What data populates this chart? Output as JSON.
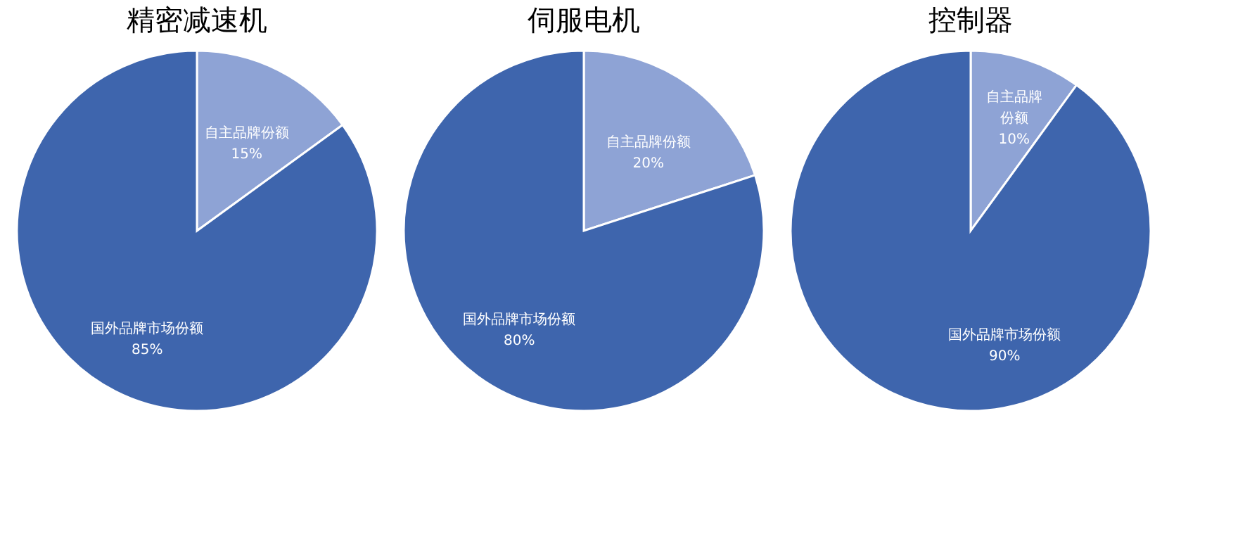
{
  "chart_data": [
    {
      "type": "pie",
      "title": "精密减速机",
      "categories": [
        "自主品牌份额",
        "国外品牌市场份额"
      ],
      "values": [
        15,
        85
      ],
      "colors": [
        "#8ea3d5",
        "#3e65ad"
      ],
      "data_labels": true,
      "value_labels": [
        "15%",
        "85%"
      ],
      "legend": false
    },
    {
      "type": "pie",
      "title": "伺服电机",
      "categories": [
        "自主品牌份额",
        "国外品牌市场份额"
      ],
      "values": [
        20,
        80
      ],
      "colors": [
        "#8ea3d5",
        "#3e65ad"
      ],
      "data_labels": true,
      "value_labels": [
        "20%",
        "80%"
      ],
      "legend": false
    },
    {
      "type": "pie",
      "title": "控制器",
      "categories": [
        "自主品牌份额",
        "国外品牌市场份额"
      ],
      "values": [
        10,
        90
      ],
      "colors": [
        "#8ea3d5",
        "#3e65ad"
      ],
      "data_labels": true,
      "value_labels": [
        "10%",
        "90%"
      ],
      "legend": false
    }
  ]
}
